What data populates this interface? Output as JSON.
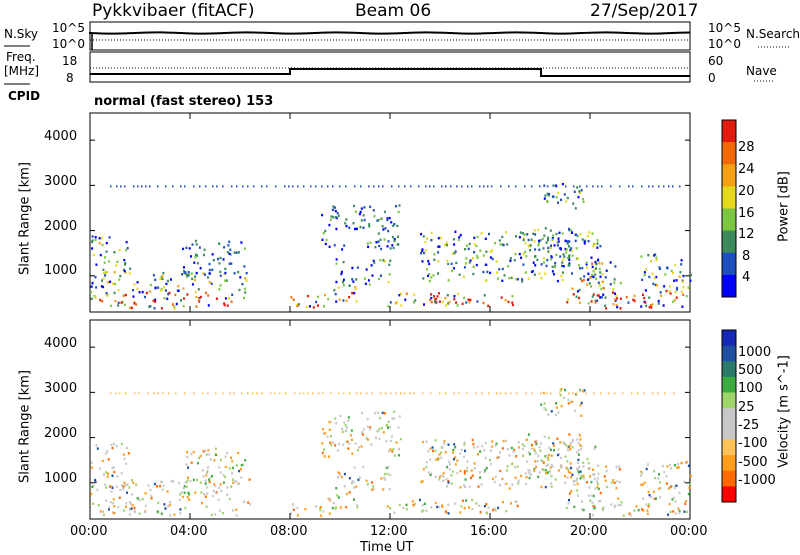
{
  "header": {
    "station": "Pykkvibaer (fitACF)",
    "beam": "Beam 06",
    "date": "27/Sep/2017"
  },
  "status_panels": {
    "nsky_label": "N.Sky",
    "nsky_ticks": [
      "10^5",
      "10^0"
    ],
    "nsearch_label": "N.Search",
    "nsearch_ticks": [
      "10^5",
      "10^0"
    ],
    "freq_label_1": "Freq.",
    "freq_label_2": "[MHz]",
    "freq_ticks": [
      "18",
      "8"
    ],
    "nave_label": "Nave",
    "nave_ticks": [
      "60",
      "0"
    ],
    "cpid_label": "CPID",
    "cpid_text": "normal (fast stereo) 153"
  },
  "colors": {
    "power_scale": [
      "#0000ff",
      "#1f4fbf",
      "#3a8a5a",
      "#7cc646",
      "#e6d81e",
      "#f2a114",
      "#f06a0a",
      "#e21b0f"
    ],
    "velocity_scale": [
      "#ff0000",
      "#ff6a00",
      "#ff9e1e",
      "#ffc25a",
      "#c8c8c8",
      "#c8c8c8",
      "#9ed46a",
      "#3daa3d",
      "#2a7a6a",
      "#1f4f9f",
      "#1428b4"
    ]
  },
  "chart_data": [
    {
      "type": "heatmap",
      "title": "Power",
      "xlabel": "",
      "ylabel": "Slant Range [km]",
      "x_ticks": [
        "00:00",
        "04:00",
        "08:00",
        "12:00",
        "16:00",
        "20:00",
        "00:00"
      ],
      "y_ticks": [
        "1000",
        "2000",
        "3000",
        "4000"
      ],
      "ylim": [
        200,
        4600
      ],
      "colorbar_label": "Power [dB]",
      "colorbar_ticks": [
        "4",
        "8",
        "12",
        "16",
        "20",
        "24",
        "28"
      ]
    },
    {
      "type": "heatmap",
      "title": "Velocity",
      "xlabel": "Time UT",
      "ylabel": "Slant Range [km]",
      "x_ticks": [
        "00:00",
        "04:00",
        "08:00",
        "12:00",
        "16:00",
        "20:00",
        "00:00"
      ],
      "y_ticks": [
        "1000",
        "2000",
        "3000",
        "4000"
      ],
      "ylim": [
        200,
        4600
      ],
      "colorbar_label": "Velocity [m s^-1]",
      "colorbar_ticks": [
        "1000",
        "500",
        "100",
        "25",
        "-25",
        "-100",
        "-500",
        "-1000"
      ]
    }
  ]
}
